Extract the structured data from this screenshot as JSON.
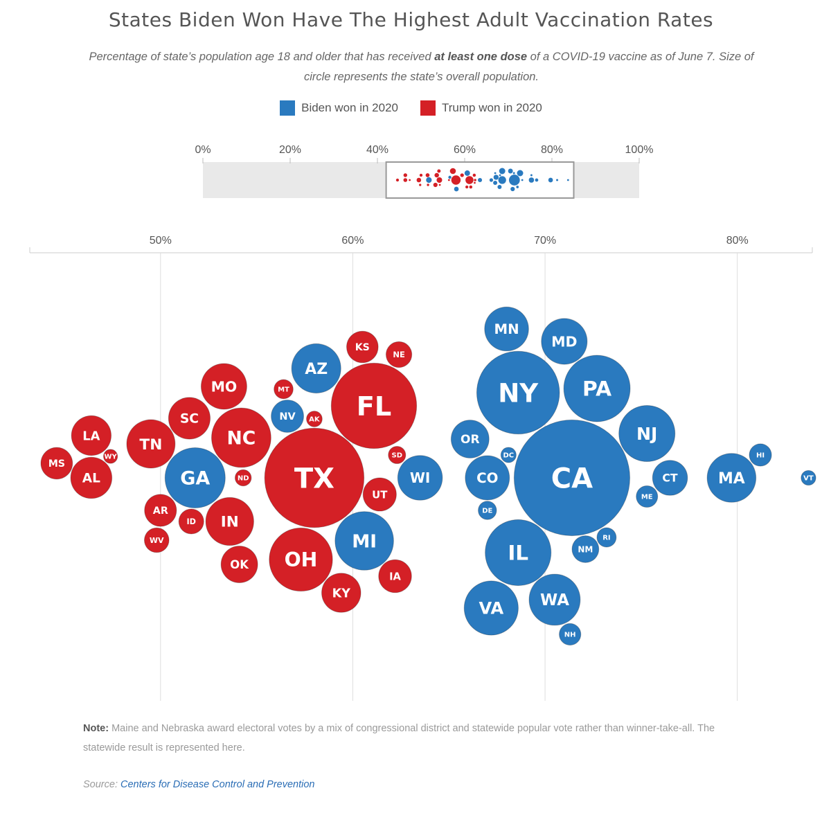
{
  "title": "States Biden Won Have The Highest Adult Vaccination Rates",
  "subtitle": {
    "before": "Percentage of state’s population age 18 and older that has received ",
    "bold": "at least one dose",
    "after": " of a COVID-19 vaccine as of June 7. Size of circle represents the state’s overall population."
  },
  "legend": {
    "biden_label": "Biden won in 2020",
    "trump_label": "Trump won in 2020"
  },
  "colors": {
    "biden": "#2a7abf",
    "trump": "#d42026",
    "grid": "#dddddd",
    "axis_text": "#555555"
  },
  "overview_axis_ticks": [
    "0%",
    "20%",
    "40%",
    "60%",
    "80%",
    "100%"
  ],
  "main_axis_ticks": [
    "50%",
    "60%",
    "70%",
    "80%"
  ],
  "note": {
    "label": "Note:",
    "text": " Maine and Nebraska award electoral votes by a mix of congressional district and statewide popular vote rather than winner-take-all. The statewide result is represented here."
  },
  "source": {
    "label": "Source:",
    "link_text": "Centers for Disease Control and Prevention"
  },
  "chart_data": {
    "type": "scatter",
    "xlabel": "",
    "ylabel": "",
    "xlim": [
      43.2,
      83.9
    ],
    "overview_xlim": [
      0,
      100
    ],
    "overview_highlight": [
      42,
      85
    ],
    "x_ticks": [
      50,
      60,
      70,
      80
    ],
    "overview_ticks": [
      0,
      20,
      40,
      60,
      80,
      100
    ],
    "series": [
      {
        "name": "Biden won in 2020",
        "color": "#2a7abf",
        "points": [
          {
            "state": "VT",
            "pct": 83.7,
            "pop": 0.64
          },
          {
            "state": "HI",
            "pct": 81.2,
            "pop": 1.46
          },
          {
            "state": "MA",
            "pct": 79.7,
            "pop": 7.03
          },
          {
            "state": "MD",
            "pct": 71.0,
            "pop": 6.18
          },
          {
            "state": "RI",
            "pct": 73.2,
            "pop": 1.1
          },
          {
            "state": "NJ",
            "pct": 75.3,
            "pop": 9.29
          },
          {
            "state": "CT",
            "pct": 76.5,
            "pop": 3.61
          },
          {
            "state": "ME",
            "pct": 75.3,
            "pop": 1.36
          },
          {
            "state": "PA",
            "pct": 72.7,
            "pop": 13.0
          },
          {
            "state": "NH",
            "pct": 71.3,
            "pop": 1.38
          },
          {
            "state": "CA",
            "pct": 71.4,
            "pop": 39.5
          },
          {
            "state": "NM",
            "pct": 72.1,
            "pop": 2.12
          },
          {
            "state": "WA",
            "pct": 70.5,
            "pop": 7.71
          },
          {
            "state": "NY",
            "pct": 68.6,
            "pop": 20.2
          },
          {
            "state": "IL",
            "pct": 68.6,
            "pop": 12.8
          },
          {
            "state": "MN",
            "pct": 68.0,
            "pop": 5.71
          },
          {
            "state": "DC",
            "pct": 68.1,
            "pop": 0.69
          },
          {
            "state": "DE",
            "pct": 67.0,
            "pop": 0.99
          },
          {
            "state": "VA",
            "pct": 67.2,
            "pop": 8.63
          },
          {
            "state": "CO",
            "pct": 67.0,
            "pop": 5.77
          },
          {
            "state": "OR",
            "pct": 66.1,
            "pop": 4.24
          },
          {
            "state": "WI",
            "pct": 63.5,
            "pop": 5.89
          },
          {
            "state": "MI",
            "pct": 60.6,
            "pop": 10.1
          },
          {
            "state": "AZ",
            "pct": 58.1,
            "pop": 7.15
          },
          {
            "state": "NV",
            "pct": 56.6,
            "pop": 3.1
          },
          {
            "state": "GA",
            "pct": 51.8,
            "pop": 10.7
          }
        ]
      },
      {
        "name": "Trump won in 2020",
        "color": "#d42026",
        "points": [
          {
            "state": "FL",
            "pct": 61.1,
            "pop": 21.5
          },
          {
            "state": "KS",
            "pct": 60.5,
            "pop": 2.94
          },
          {
            "state": "SD",
            "pct": 62.3,
            "pop": 0.89
          },
          {
            "state": "UT",
            "pct": 61.4,
            "pop": 3.27
          },
          {
            "state": "IA",
            "pct": 62.2,
            "pop": 3.19
          },
          {
            "state": "NE",
            "pct": 62.4,
            "pop": 1.96
          },
          {
            "state": "AK",
            "pct": 58.0,
            "pop": 0.73
          },
          {
            "state": "KY",
            "pct": 59.4,
            "pop": 4.51
          },
          {
            "state": "TX",
            "pct": 58.0,
            "pop": 29.1
          },
          {
            "state": "OH",
            "pct": 57.3,
            "pop": 11.8
          },
          {
            "state": "MT",
            "pct": 56.4,
            "pop": 1.08
          },
          {
            "state": "NC",
            "pct": 54.2,
            "pop": 10.4
          },
          {
            "state": "IN",
            "pct": 53.6,
            "pop": 6.79
          },
          {
            "state": "ND",
            "pct": 54.3,
            "pop": 0.78
          },
          {
            "state": "OK",
            "pct": 54.1,
            "pop": 3.96
          },
          {
            "state": "MO",
            "pct": 53.3,
            "pop": 6.15
          },
          {
            "state": "ID",
            "pct": 51.6,
            "pop": 1.84
          },
          {
            "state": "SC",
            "pct": 51.5,
            "pop": 5.12
          },
          {
            "state": "AR",
            "pct": 50.0,
            "pop": 3.01
          },
          {
            "state": "WV",
            "pct": 49.8,
            "pop": 1.79
          },
          {
            "state": "TN",
            "pct": 49.5,
            "pop": 6.91
          },
          {
            "state": "WY",
            "pct": 47.4,
            "pop": 0.58
          },
          {
            "state": "AL",
            "pct": 46.4,
            "pop": 5.02
          },
          {
            "state": "LA",
            "pct": 46.4,
            "pop": 4.66
          },
          {
            "state": "MS",
            "pct": 44.6,
            "pop": 2.96
          }
        ]
      }
    ]
  }
}
